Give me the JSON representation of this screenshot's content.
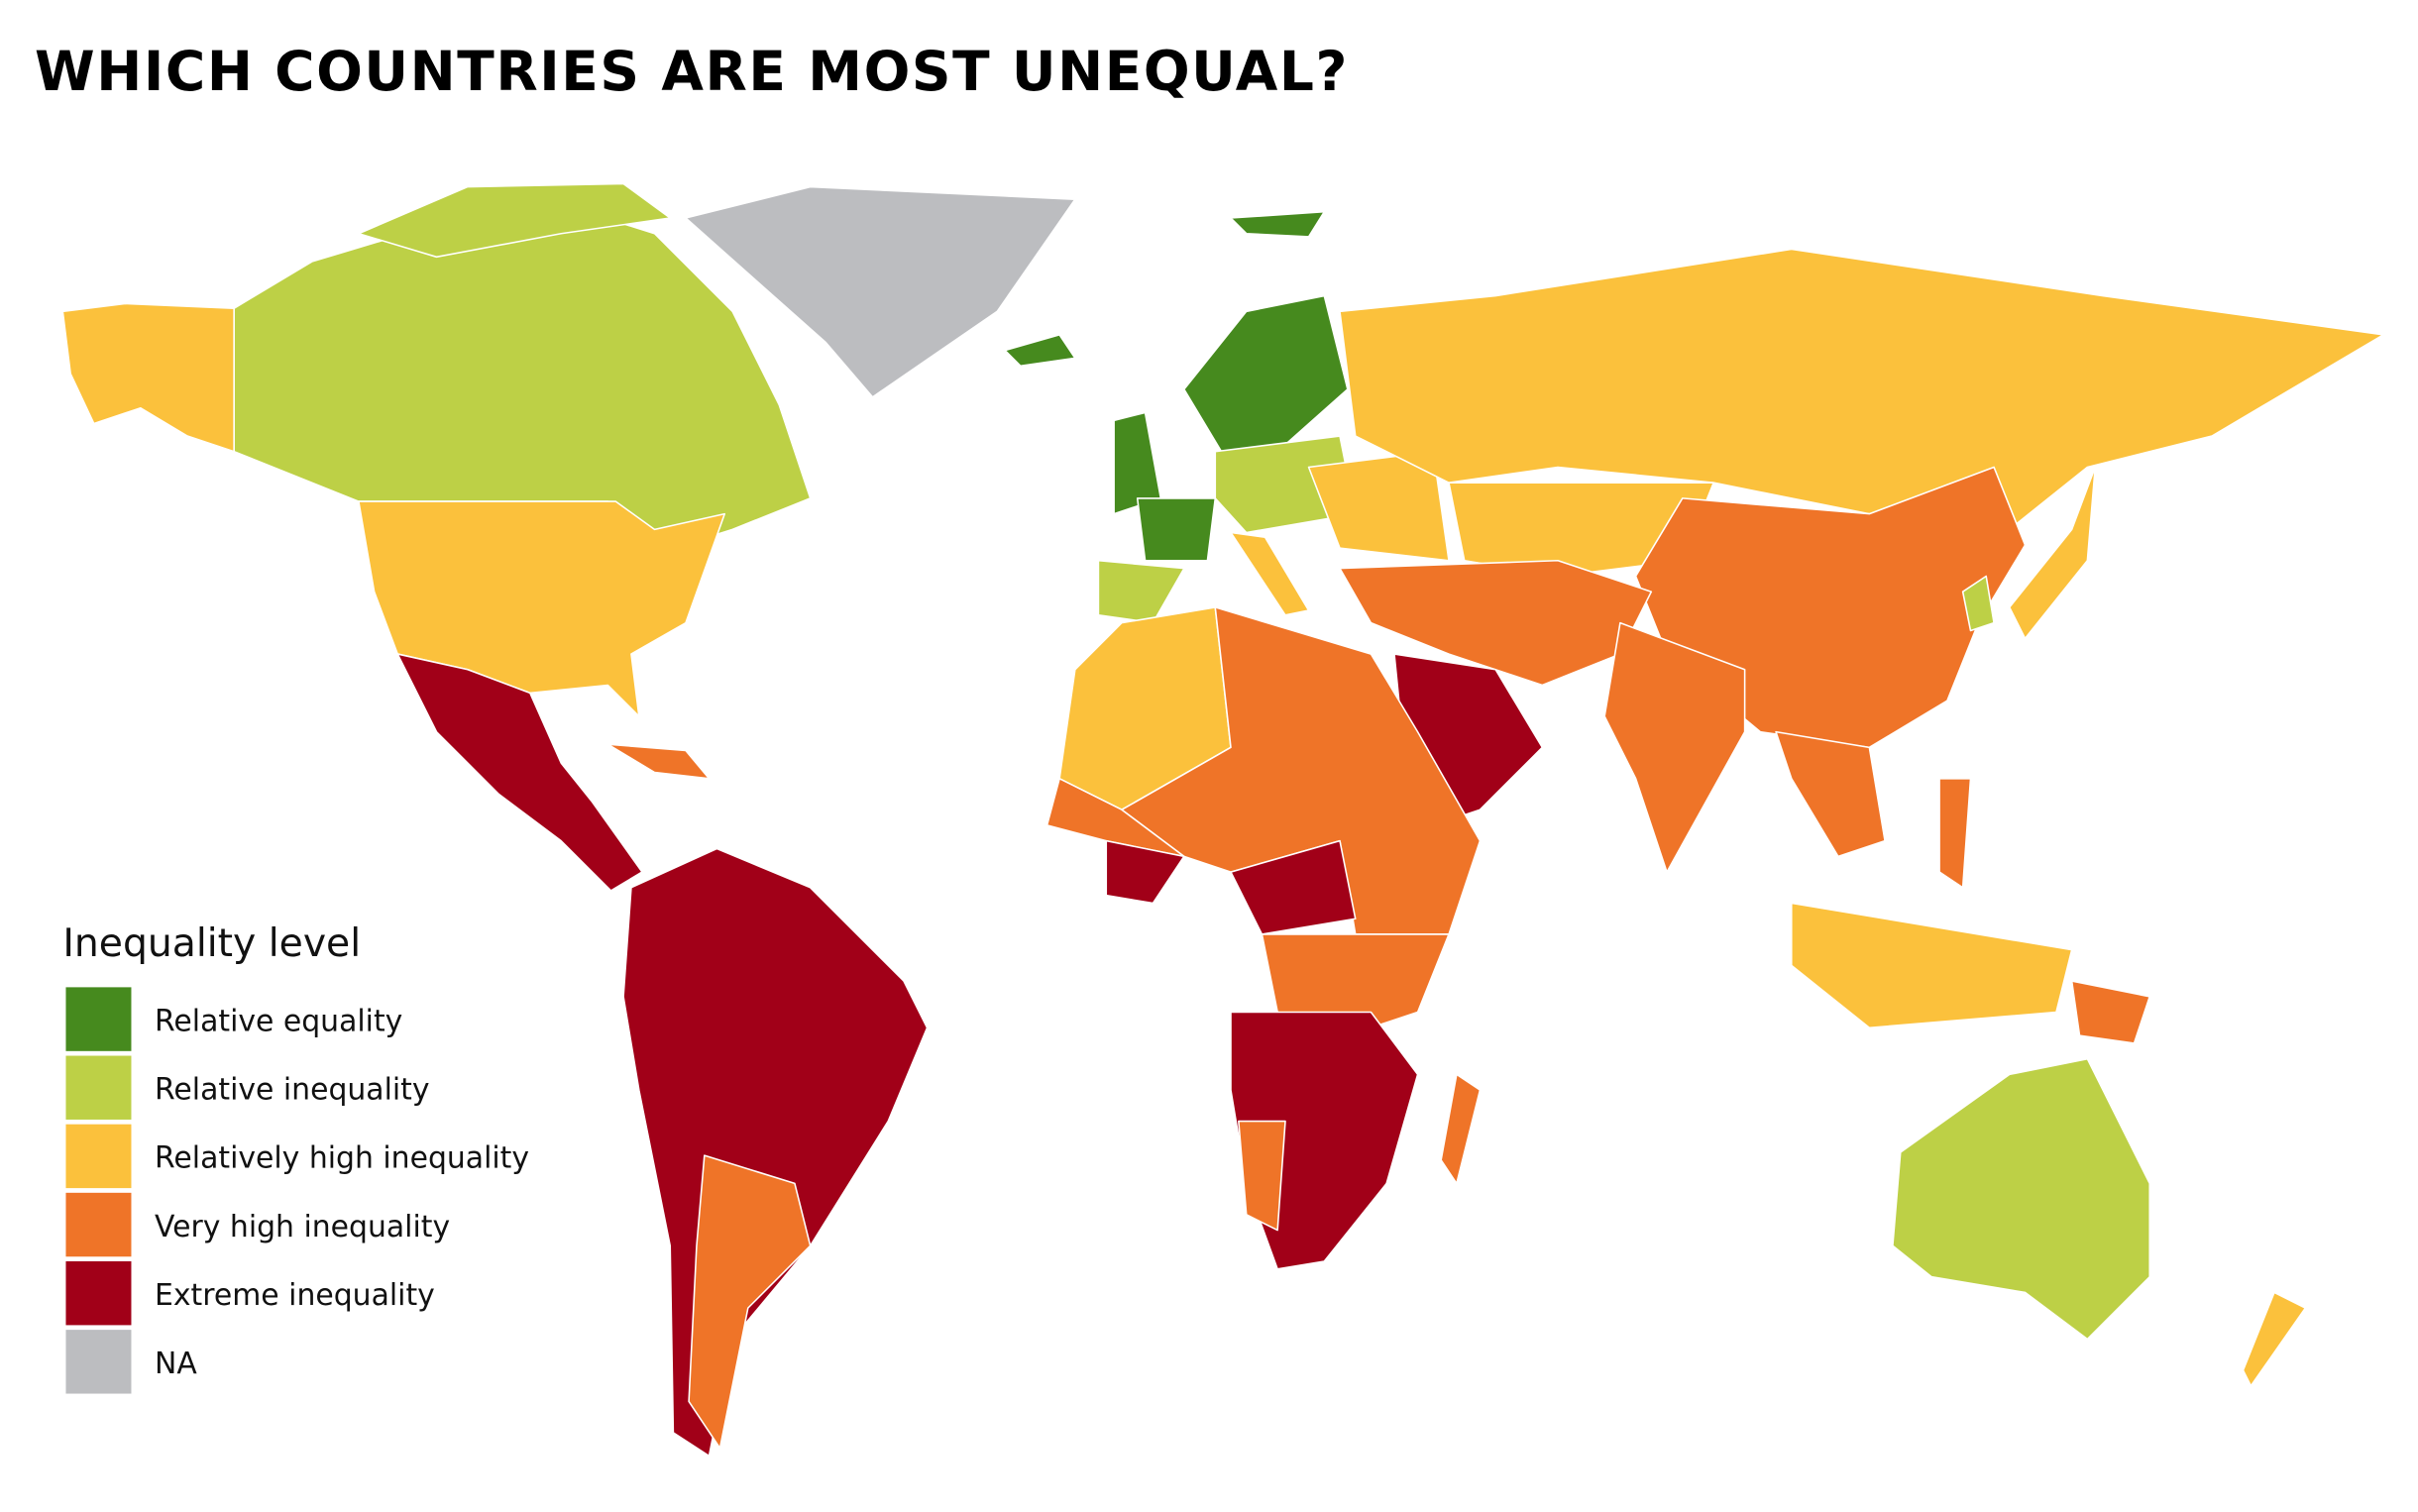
{
  "title": "WHICH COUNTRIES ARE MOST UNEQUAL?",
  "legend": {
    "title": "Inequality level",
    "items": [
      {
        "label": "Relative equality",
        "color": "#468a1e"
      },
      {
        "label": "Relative inequality",
        "color": "#bdd046"
      },
      {
        "label": "Relatively high inequality",
        "color": "#fbc13c"
      },
      {
        "label": "Very high inequality",
        "color": "#ef7428"
      },
      {
        "label": "Extreme inequality",
        "color": "#a10018"
      },
      {
        "label": "NA",
        "color": "#bcbdc0"
      }
    ]
  }
}
